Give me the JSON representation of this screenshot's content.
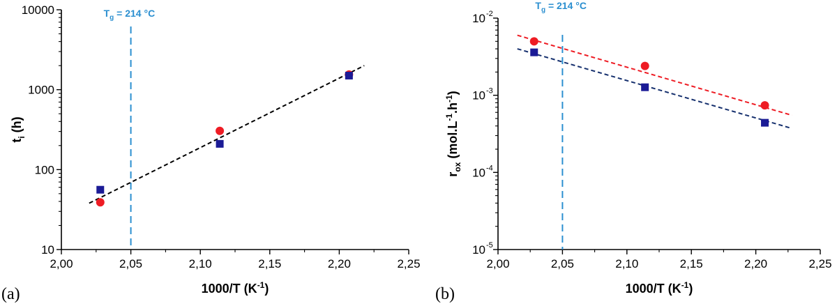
{
  "colors": {
    "red": "#ee1c24",
    "blue": "#1b1b96",
    "navy": "#16306e",
    "black": "#000000",
    "tg": "#2b8fd0"
  },
  "chart_data": [
    {
      "type": "scatter",
      "panel_label": "(a)",
      "xlabel": "1000/T (K",
      "xlabel_sup": "-1",
      "xlabel_end": ")",
      "ylabel": "t",
      "ylabel_sub": "i",
      "ylabel_rest": " (h)",
      "xlim": [
        2.0,
        2.25
      ],
      "ylim": [
        10,
        10000
      ],
      "yscale": "log",
      "x_ticks": [
        "2,00",
        "2,05",
        "2,10",
        "2,15",
        "2,20",
        "2,25"
      ],
      "y_ticks": [
        "10",
        "100",
        "1000",
        "10000"
      ],
      "tg_line": {
        "x": 2.05,
        "label": "T",
        "label_sub": "g",
        "label_rest": " = 214 °C"
      },
      "series": [
        {
          "marker": "circle",
          "color": "red",
          "x": [
            2.028,
            2.114,
            2.207
          ],
          "values": [
            39,
            305,
            1550
          ]
        },
        {
          "marker": "square",
          "color": "blue",
          "x": [
            2.028,
            2.114,
            2.207
          ],
          "values": [
            56,
            210,
            1500
          ]
        }
      ],
      "fits": [
        {
          "color": "black",
          "x": [
            2.02,
            2.218
          ],
          "values": [
            38,
            2000
          ]
        }
      ]
    },
    {
      "type": "scatter",
      "panel_label": "(b)",
      "xlabel": "1000/T (K",
      "xlabel_sup": "-1",
      "xlabel_end": ")",
      "ylabel": "r",
      "ylabel_sub": "ox",
      "ylabel_rest": " (mol.L",
      "ylabel_sup1": "-1",
      "ylabel_mid": ".h",
      "ylabel_sup2": "-1",
      "ylabel_end": ")",
      "xlim": [
        2.0,
        2.25
      ],
      "ylim": [
        1e-05,
        0.01
      ],
      "yscale": "log",
      "x_ticks": [
        "2,00",
        "2,05",
        "2,10",
        "2,15",
        "2,20",
        "2,25"
      ],
      "y_ticks": [
        {
          "base": "10",
          "exp": "-5"
        },
        {
          "base": "10",
          "exp": "-4"
        },
        {
          "base": "10",
          "exp": "-3"
        },
        {
          "base": "10",
          "exp": "-2"
        }
      ],
      "tg_line": {
        "x": 2.05,
        "label": "T",
        "label_sub": "g",
        "label_rest": " = 214 °C"
      },
      "series": [
        {
          "marker": "circle",
          "color": "red",
          "x": [
            2.028,
            2.114,
            2.207
          ],
          "values": [
            0.005,
            0.0024,
            0.00074
          ]
        },
        {
          "marker": "square",
          "color": "blue",
          "x": [
            2.028,
            2.114,
            2.207
          ],
          "values": [
            0.0036,
            0.00127,
            0.00044
          ]
        }
      ],
      "fits": [
        {
          "color": "red",
          "x": [
            2.015,
            2.228
          ],
          "values": [
            0.006,
            0.00055
          ]
        },
        {
          "color": "navy",
          "x": [
            2.015,
            2.226
          ],
          "values": [
            0.004,
            0.00038
          ]
        }
      ]
    }
  ]
}
